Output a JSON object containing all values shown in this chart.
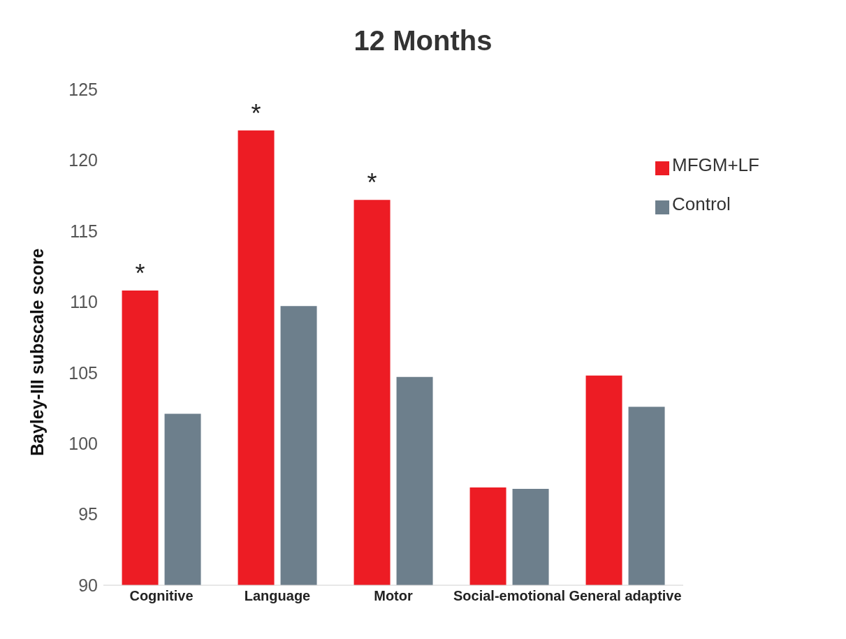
{
  "chart_data": {
    "type": "bar",
    "title": "12 Months",
    "ylabel": "Bayley-III subscale score",
    "categories": [
      "Cognitive",
      "Language",
      "Motor",
      "Social-emotional",
      "General adaptive"
    ],
    "series": [
      {
        "name": "MFGM+LF",
        "color": "#ed1c24",
        "values": [
          110.8,
          122.1,
          117.2,
          96.9,
          104.8
        ]
      },
      {
        "name": "Control",
        "color": "#6d7f8c",
        "values": [
          102.1,
          109.7,
          104.7,
          96.8,
          102.6
        ]
      }
    ],
    "ylim": [
      90,
      125
    ],
    "yticks": [
      90,
      95,
      100,
      105,
      110,
      115,
      120,
      125
    ],
    "grid": false,
    "legend": "top right",
    "annotations": [
      {
        "text": "*",
        "x": "Cognitive",
        "y": 110.8
      },
      {
        "text": "*",
        "x": "Language",
        "y": 122.1
      },
      {
        "text": "*",
        "x": "Motor",
        "y": 117.2
      }
    ]
  }
}
